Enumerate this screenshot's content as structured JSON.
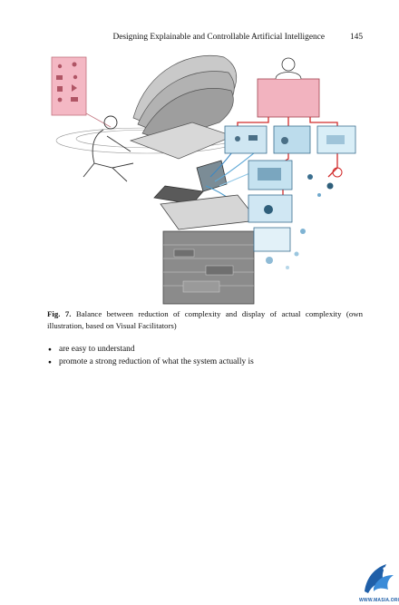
{
  "running_head": {
    "title": "Designing Explainable and Controllable Artificial Intelligence",
    "page_number": "145"
  },
  "figure": {
    "label": "Fig. 7.",
    "caption": "Balance between reduction of complexity and display of actual complexity (own illustration, based on Visual Facilitators)"
  },
  "bullets": [
    "are easy to understand",
    "promote a strong reduction of what the system actually is"
  ],
  "watermark": {
    "text": "WWW.MASIA.ORG",
    "color": "#1f5fa8"
  },
  "colors": {
    "pink_panel": "#f4b8c4",
    "blue_panel": "#cfe6f2",
    "red_connector": "#d12b2b",
    "gray_structure": "#8b8b8b"
  }
}
